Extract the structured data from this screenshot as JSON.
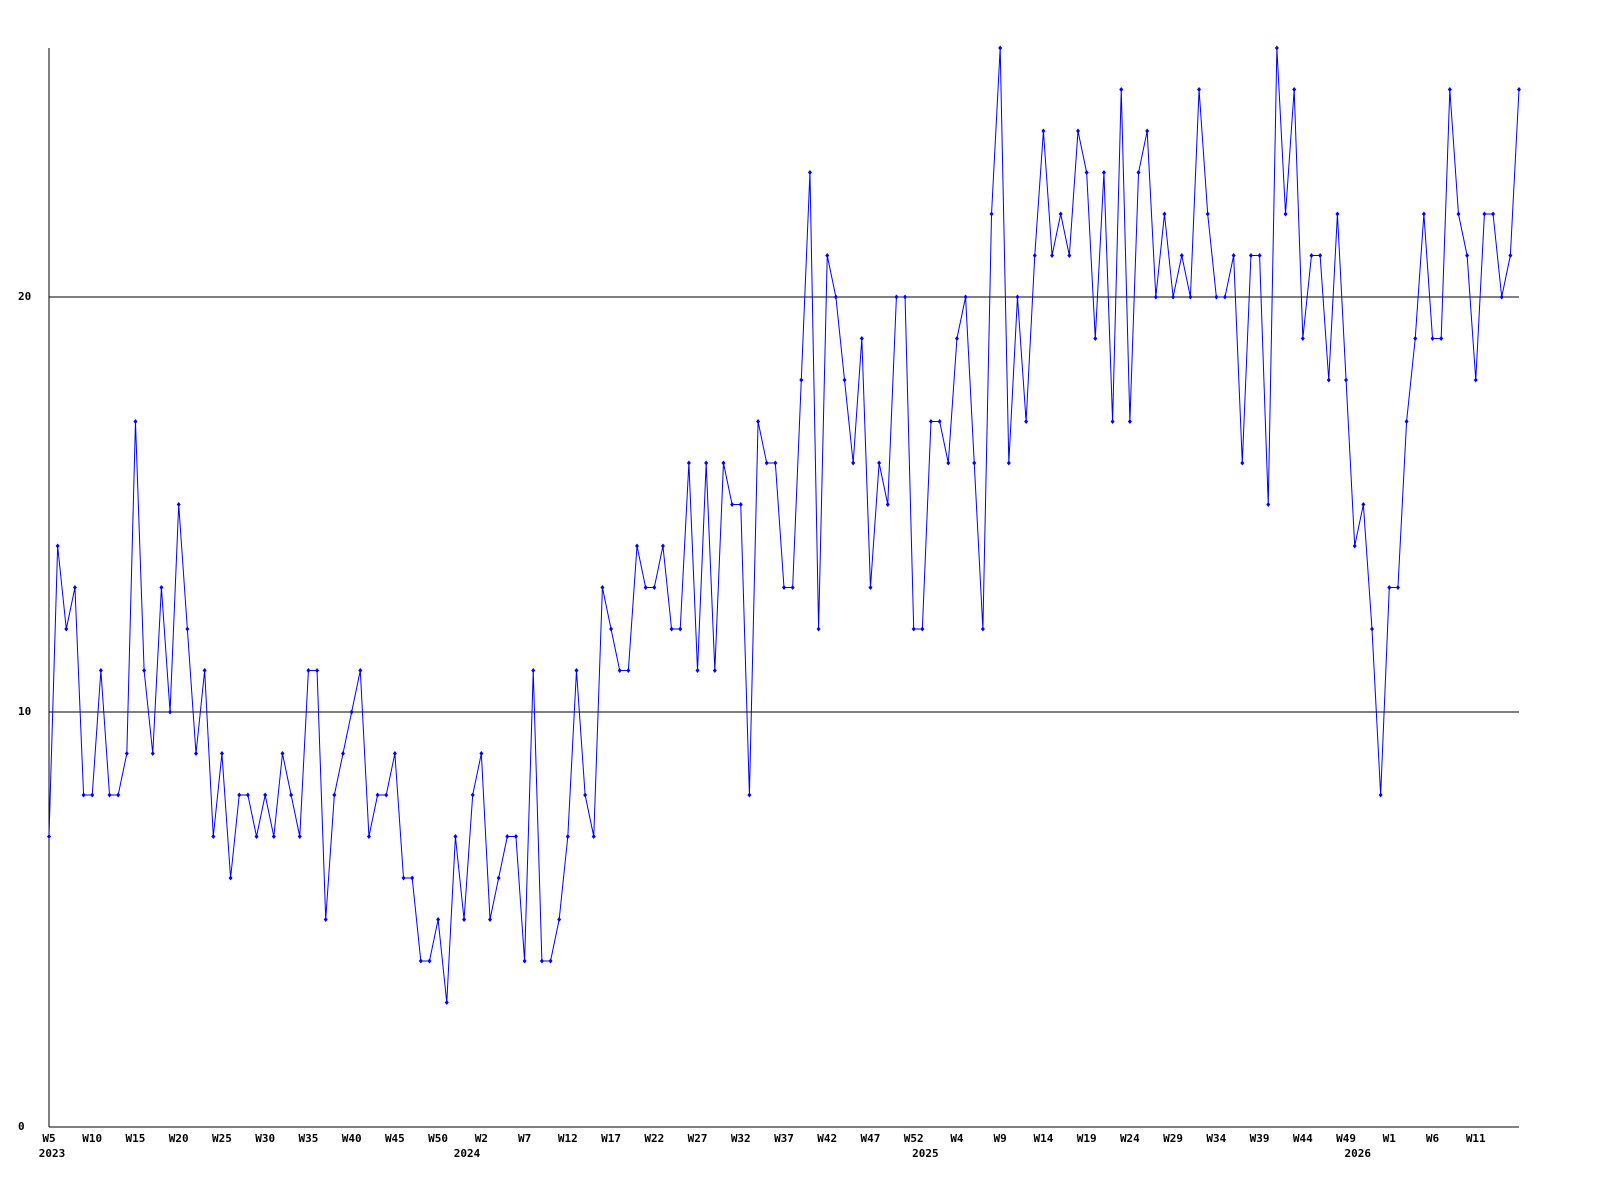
{
  "chart_data": {
    "type": "line",
    "categories": [
      "W5",
      null,
      null,
      null,
      null,
      "W10",
      null,
      null,
      null,
      null,
      "W15",
      null,
      null,
      null,
      null,
      "W20",
      null,
      null,
      null,
      null,
      "W25",
      null,
      null,
      null,
      null,
      "W30",
      null,
      null,
      null,
      null,
      "W35",
      null,
      null,
      null,
      null,
      "W40",
      null,
      null,
      null,
      null,
      "W45",
      null,
      null,
      null,
      null,
      "W50",
      null,
      null,
      null,
      null,
      "W2",
      null,
      null,
      null,
      null,
      "W7",
      null,
      null,
      null,
      null,
      "W12",
      null,
      null,
      null,
      null,
      "W17",
      null,
      null,
      null,
      null,
      "W22",
      null,
      null,
      null,
      null,
      "W27",
      null,
      null,
      null,
      null,
      "W32",
      null,
      null,
      null,
      null,
      "W37",
      null,
      null,
      null,
      null,
      "W42",
      null,
      null,
      null,
      null,
      "W47",
      null,
      null,
      null,
      null,
      "W52",
      null,
      null,
      null,
      null,
      "W4",
      null,
      null,
      null,
      null,
      "W9",
      null,
      null,
      null,
      null,
      "W14",
      null,
      null,
      null,
      null,
      "W19",
      null,
      null,
      null,
      null,
      "W24",
      null,
      null,
      null,
      null,
      "W29",
      null,
      null,
      null,
      null,
      "W34",
      null,
      null,
      null,
      null,
      "W39",
      null,
      null,
      null,
      null,
      "W44",
      null,
      null,
      null,
      null,
      "W49",
      null,
      null,
      null,
      null,
      "W1",
      null,
      null,
      null,
      null,
      "W6",
      null,
      null,
      null,
      null,
      "W11",
      null,
      null,
      null,
      null,
      null
    ],
    "year_row": [
      "2023",
      null,
      null,
      null,
      null,
      null,
      null,
      null,
      null,
      null,
      null,
      null,
      null,
      null,
      null,
      null,
      null,
      null,
      null,
      null,
      null,
      null,
      null,
      null,
      null,
      null,
      null,
      null,
      null,
      null,
      null,
      null,
      null,
      null,
      null,
      null,
      null,
      null,
      null,
      null,
      null,
      null,
      null,
      null,
      null,
      null,
      null,
      null,
      "2024",
      null,
      null,
      null,
      null,
      null,
      null,
      null,
      null,
      null,
      null,
      null,
      null,
      null,
      null,
      null,
      null,
      null,
      null,
      null,
      null,
      null,
      null,
      null,
      null,
      null,
      null,
      null,
      null,
      null,
      null,
      null,
      null,
      null,
      null,
      null,
      null,
      null,
      null,
      null,
      null,
      null,
      null,
      null,
      null,
      null,
      null,
      null,
      null,
      null,
      null,
      null,
      null,
      "2025",
      null,
      null,
      null,
      null,
      null,
      null,
      null,
      null,
      null,
      null,
      null,
      null,
      null,
      null,
      null,
      null,
      null,
      null,
      null,
      null,
      null,
      null,
      null,
      null,
      null,
      null,
      null,
      null,
      null,
      null,
      null,
      null,
      null,
      null,
      null,
      null,
      null,
      null,
      null,
      null,
      null,
      null,
      null,
      null,
      null,
      null,
      null,
      null,
      null,
      "2026",
      null,
      null,
      null,
      null,
      null,
      null,
      null,
      null,
      null,
      null,
      null,
      null,
      null,
      null,
      null
    ],
    "series": [
      {
        "color": "#0000ff",
        "values": [
          7,
          14,
          12,
          13,
          8,
          8,
          11,
          8,
          8,
          9,
          17,
          11,
          9,
          13,
          10,
          15,
          12,
          9,
          11,
          7,
          9,
          6,
          8,
          8,
          7,
          8,
          7,
          9,
          8,
          7,
          11,
          11,
          5,
          8,
          9,
          10,
          11,
          7,
          8,
          8,
          9,
          6,
          6,
          4,
          4,
          5,
          3,
          7,
          5,
          8,
          9,
          5,
          6,
          7,
          7,
          4,
          11,
          4,
          4,
          5,
          7,
          11,
          8,
          7,
          13,
          12,
          11,
          11,
          14,
          13,
          13,
          14,
          12,
          12,
          16,
          11,
          16,
          11,
          16,
          15,
          15,
          8,
          17,
          16,
          16,
          13,
          13,
          18,
          23,
          12,
          21,
          20,
          18,
          16,
          19,
          13,
          16,
          15,
          20,
          20,
          12,
          12,
          17,
          17,
          16,
          19,
          20,
          16,
          12,
          22,
          26,
          16,
          20,
          17,
          21,
          24,
          21,
          22,
          21,
          24,
          23,
          19,
          23,
          17,
          25,
          17,
          23,
          24,
          20,
          22,
          20,
          21,
          20,
          25,
          22,
          20,
          20,
          21,
          16,
          21,
          21,
          15,
          26,
          22,
          25,
          19,
          21,
          21,
          18,
          22,
          18,
          14,
          15,
          12,
          8,
          13,
          13,
          17,
          19,
          22,
          19,
          19,
          25,
          22,
          21,
          18,
          22,
          22,
          20,
          21,
          25
        ]
      }
    ],
    "ylim": [
      0,
      26
    ],
    "yticks": [
      0,
      10,
      20
    ],
    "grid": true
  }
}
